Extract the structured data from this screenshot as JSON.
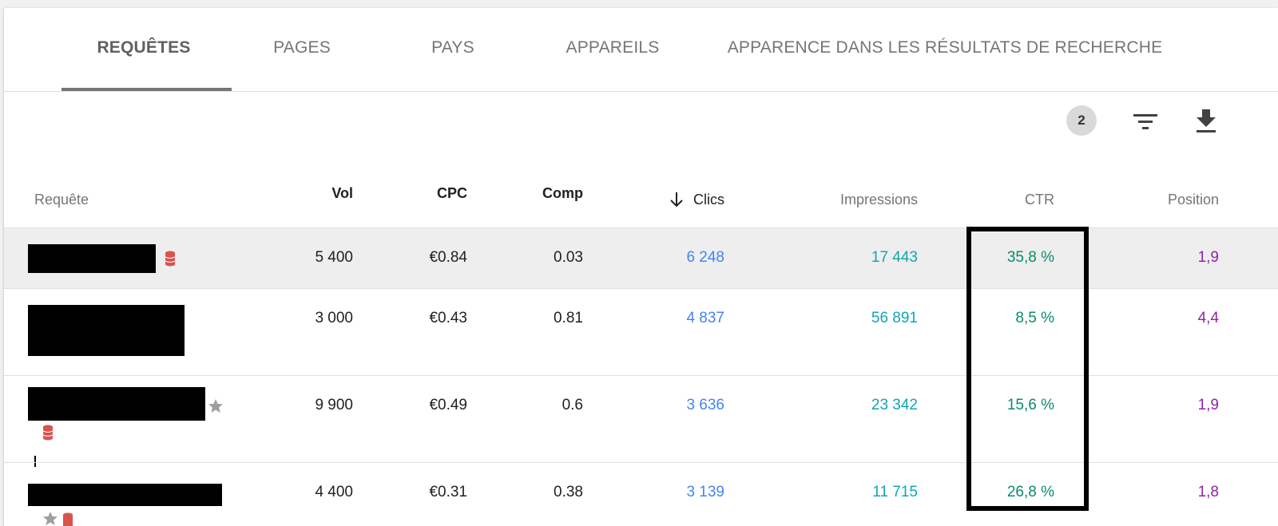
{
  "tabs": [
    {
      "label": "REQUÊTES",
      "active": true
    },
    {
      "label": "PAGES",
      "active": false
    },
    {
      "label": "PAYS",
      "active": false
    },
    {
      "label": "APPAREILS",
      "active": false
    },
    {
      "label": "APPARENCE DANS LES RÉSULTATS DE RECHERCHE",
      "active": false
    }
  ],
  "toolbar": {
    "filter_count": "2",
    "filter_icon": "filter-icon",
    "download_icon": "download-icon"
  },
  "table": {
    "headers": {
      "query": "Requête",
      "vol": "Vol",
      "cpc": "CPC",
      "comp": "Comp",
      "clicks": "Clics",
      "impressions": "Impressions",
      "ctr": "CTR",
      "position": "Position"
    },
    "sort_icon": "arrow-down-icon",
    "rows": [
      {
        "vol": "5 400",
        "cpc": "€0.84",
        "comp": "0.03",
        "clicks": "6 248",
        "impressions": "17 443",
        "ctr": "35,8 %",
        "position": "1,9"
      },
      {
        "vol": "3 000",
        "cpc": "€0.43",
        "comp": "0.81",
        "clicks": "4 837",
        "impressions": "56 891",
        "ctr": "8,5 %",
        "position": "4,4"
      },
      {
        "vol": "9 900",
        "cpc": "€0.49",
        "comp": "0.6",
        "clicks": "3 636",
        "impressions": "23 342",
        "ctr": "15,6 %",
        "position": "1,9"
      },
      {
        "vol": "4 400",
        "cpc": "€0.31",
        "comp": "0.38",
        "clicks": "3 139",
        "impressions": "11 715",
        "ctr": "26,8 %",
        "position": "1,8"
      }
    ]
  },
  "colors": {
    "clicks": "#4285f4",
    "impressions": "#12a5b8",
    "ctr": "#0b8a6e",
    "position": "#8e24aa",
    "db_icon": "#d9534f"
  }
}
